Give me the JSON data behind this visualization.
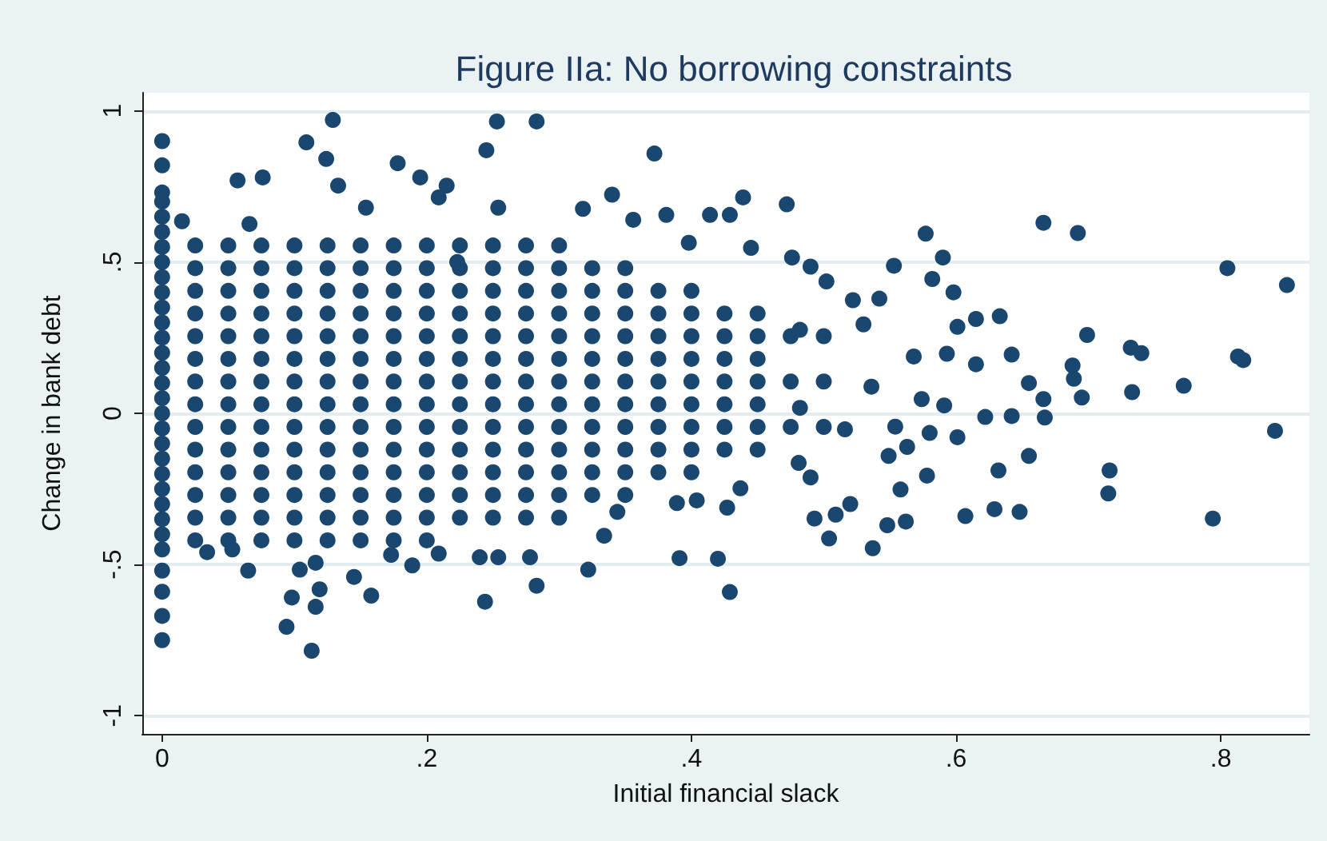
{
  "chart_data": {
    "type": "scatter",
    "title": "Figure IIa: No borrowing constraints",
    "xlabel": "Initial financial slack",
    "ylabel": "Change in bank debt",
    "xlim": [
      -0.015,
      0.867
    ],
    "ylim": [
      -1.06,
      1.06
    ],
    "xticks": [
      0,
      {
        "value": 0.2,
        "label": ".2"
      },
      {
        "value": 0.4,
        "label": ".4"
      },
      {
        "value": 0.6,
        "label": ".6"
      },
      {
        "value": 0.8,
        "label": ".8"
      }
    ],
    "yticks": [
      -1,
      {
        "value": -0.5,
        "label": "-.5"
      },
      0,
      {
        "value": 0.5,
        "label": ".5"
      },
      1
    ],
    "grid": "y",
    "marker": "circle",
    "series": [
      {
        "color": "#1a476f",
        "x": [
          0,
          0,
          0,
          0,
          0,
          0,
          0,
          0,
          0,
          0,
          0,
          0,
          0,
          0,
          0,
          0,
          0,
          0,
          0,
          0,
          0,
          0,
          0,
          0,
          0,
          0,
          0,
          0,
          0,
          0,
          0
        ],
        "values": [
          -0.45,
          -0.4,
          -0.35,
          -0.3,
          -0.25,
          -0.2,
          -0.15,
          -0.1,
          -0.05,
          0,
          0.05,
          0.1,
          0.15,
          0.2,
          0.25,
          0.3,
          0.35,
          0.4,
          0.45,
          0.5,
          0.55,
          0.6,
          0.65,
          0.7,
          0.9,
          0.82,
          0.73,
          -0.75,
          -0.67,
          -0.59,
          -0.52
        ]
      },
      {
        "color": "#1a476f",
        "x": [
          0.025,
          0.025,
          0.025,
          0.025,
          0.025,
          0.025,
          0.025,
          0.025,
          0.025,
          0.025,
          0.025,
          0.025,
          0.025,
          0.025,
          0.05,
          0.05,
          0.05,
          0.05,
          0.05,
          0.05,
          0.05,
          0.05,
          0.05,
          0.05,
          0.05,
          0.05,
          0.05,
          0.05,
          0.075,
          0.075,
          0.075,
          0.075,
          0.075,
          0.075,
          0.075,
          0.075,
          0.075,
          0.075,
          0.075,
          0.075,
          0.075,
          0.075,
          0.1,
          0.1,
          0.1,
          0.1,
          0.1,
          0.1,
          0.1,
          0.1,
          0.1,
          0.1,
          0.1,
          0.1,
          0.1,
          0.1
        ],
        "values": [
          -0.42,
          -0.345,
          -0.27,
          -0.195,
          -0.12,
          -0.045,
          0.03,
          0.105,
          0.18,
          0.255,
          0.33,
          0.405,
          0.48,
          0.555,
          -0.42,
          -0.345,
          -0.27,
          -0.195,
          -0.12,
          -0.045,
          0.03,
          0.105,
          0.18,
          0.255,
          0.33,
          0.405,
          0.48,
          0.555,
          -0.42,
          -0.345,
          -0.27,
          -0.195,
          -0.12,
          -0.045,
          0.03,
          0.105,
          0.18,
          0.255,
          0.33,
          0.405,
          0.48,
          0.555,
          -0.42,
          -0.345,
          -0.27,
          -0.195,
          -0.12,
          -0.045,
          0.03,
          0.105,
          0.18,
          0.255,
          0.33,
          0.405,
          0.48,
          0.555
        ]
      },
      {
        "color": "#1a476f",
        "x": [
          0.125,
          0.125,
          0.125,
          0.125,
          0.125,
          0.125,
          0.125,
          0.125,
          0.125,
          0.125,
          0.125,
          0.125,
          0.125,
          0.125,
          0.15,
          0.15,
          0.15,
          0.15,
          0.15,
          0.15,
          0.15,
          0.15,
          0.15,
          0.15,
          0.15,
          0.15,
          0.15,
          0.15,
          0.175,
          0.175,
          0.175,
          0.175,
          0.175,
          0.175,
          0.175,
          0.175,
          0.175,
          0.175,
          0.175,
          0.175,
          0.175,
          0.175,
          0.2,
          0.2,
          0.2,
          0.2,
          0.2,
          0.2,
          0.2,
          0.2,
          0.2,
          0.2,
          0.2,
          0.2,
          0.2,
          0.2
        ],
        "values": [
          -0.42,
          -0.345,
          -0.27,
          -0.195,
          -0.12,
          -0.045,
          0.03,
          0.105,
          0.18,
          0.255,
          0.33,
          0.405,
          0.48,
          0.555,
          -0.42,
          -0.345,
          -0.27,
          -0.195,
          -0.12,
          -0.045,
          0.03,
          0.105,
          0.18,
          0.255,
          0.33,
          0.405,
          0.48,
          0.555,
          -0.42,
          -0.345,
          -0.27,
          -0.195,
          -0.12,
          -0.045,
          0.03,
          0.105,
          0.18,
          0.255,
          0.33,
          0.405,
          0.48,
          0.555,
          -0.42,
          -0.345,
          -0.27,
          -0.195,
          -0.12,
          -0.045,
          0.03,
          0.105,
          0.18,
          0.255,
          0.33,
          0.405,
          0.48,
          0.555
        ]
      },
      {
        "color": "#1a476f",
        "x": [
          0.225,
          0.225,
          0.225,
          0.225,
          0.225,
          0.225,
          0.225,
          0.225,
          0.225,
          0.225,
          0.225,
          0.225,
          0.225,
          0.25,
          0.25,
          0.25,
          0.25,
          0.25,
          0.25,
          0.25,
          0.25,
          0.25,
          0.25,
          0.25,
          0.25,
          0.25,
          0.275,
          0.275,
          0.275,
          0.275,
          0.275,
          0.275,
          0.275,
          0.275,
          0.275,
          0.275,
          0.275,
          0.275,
          0.275,
          0.3,
          0.3,
          0.3,
          0.3,
          0.3,
          0.3,
          0.3,
          0.3,
          0.3,
          0.3,
          0.3,
          0.3,
          0.3
        ],
        "values": [
          -0.345,
          -0.27,
          -0.195,
          -0.12,
          -0.045,
          0.03,
          0.105,
          0.18,
          0.255,
          0.33,
          0.405,
          0.48,
          0.555,
          -0.345,
          -0.27,
          -0.195,
          -0.12,
          -0.045,
          0.03,
          0.105,
          0.18,
          0.255,
          0.33,
          0.405,
          0.48,
          0.555,
          -0.345,
          -0.27,
          -0.195,
          -0.12,
          -0.045,
          0.03,
          0.105,
          0.18,
          0.255,
          0.33,
          0.405,
          0.48,
          0.555,
          -0.345,
          -0.27,
          -0.195,
          -0.12,
          -0.045,
          0.03,
          0.105,
          0.18,
          0.255,
          0.33,
          0.405,
          0.48,
          0.555
        ]
      },
      {
        "color": "#1a476f",
        "x": [
          0.325,
          0.325,
          0.325,
          0.325,
          0.325,
          0.325,
          0.325,
          0.325,
          0.325,
          0.325,
          0.325,
          0.35,
          0.35,
          0.35,
          0.35,
          0.35,
          0.35,
          0.35,
          0.35,
          0.35,
          0.35,
          0.35,
          0.375,
          0.375,
          0.375,
          0.375,
          0.375,
          0.375,
          0.375,
          0.375,
          0.375,
          0.4,
          0.4,
          0.4,
          0.4,
          0.4,
          0.4,
          0.4,
          0.4,
          0.4,
          0.425,
          0.425,
          0.425,
          0.425,
          0.425,
          0.425,
          0.425,
          0.45,
          0.45,
          0.45,
          0.45,
          0.45,
          0.45,
          0.45,
          0.475,
          0.475,
          0.475,
          0.5,
          0.5,
          0.5
        ],
        "values": [
          -0.27,
          -0.195,
          -0.12,
          -0.045,
          0.03,
          0.105,
          0.18,
          0.255,
          0.33,
          0.405,
          0.48,
          -0.27,
          -0.195,
          -0.12,
          -0.045,
          0.03,
          0.105,
          0.18,
          0.255,
          0.33,
          0.405,
          0.48,
          -0.195,
          -0.12,
          -0.045,
          0.03,
          0.105,
          0.18,
          0.255,
          0.33,
          0.405,
          -0.195,
          -0.12,
          -0.045,
          0.03,
          0.105,
          0.18,
          0.255,
          0.33,
          0.405,
          -0.12,
          -0.045,
          0.03,
          0.105,
          0.18,
          0.255,
          0.33,
          -0.12,
          -0.045,
          0.03,
          0.105,
          0.18,
          0.255,
          0.33,
          -0.045,
          0.105,
          0.255,
          -0.045,
          0.105,
          0.255
        ]
      },
      {
        "color": "#1a476f",
        "x": [
          0.129,
          0.109,
          0.124,
          0.178,
          0.253,
          0.283,
          0.245,
          0.372,
          0.195,
          0.215,
          0.076,
          0.057,
          0.209,
          0.34,
          0.154,
          0.318,
          0.254,
          0.356,
          0.381,
          0.133,
          0.015,
          0.066,
          0.113,
          0.094,
          0.098,
          0.116,
          0.119,
          0.104,
          0.116,
          0.065,
          0.145,
          0.158,
          0.244,
          0.283,
          0.254,
          0.24,
          0.278,
          0.322,
          0.189,
          0.173,
          0.209,
          0.034,
          0.053,
          0.344,
          0.334,
          0.439,
          0.472,
          0.414,
          0.429,
          0.577,
          0.666,
          0.692,
          0.59,
          0.553,
          0.805,
          0.85,
          0.598,
          0.582,
          0.49,
          0.476,
          0.445,
          0.398,
          0.633,
          0.615,
          0.601,
          0.699,
          0.732,
          0.74,
          0.813,
          0.817,
          0.642,
          0.593,
          0.615,
          0.688,
          0.689,
          0.655,
          0.772,
          0.733,
          0.695,
          0.666,
          0.667,
          0.642,
          0.622,
          0.841,
          0.601,
          0.58,
          0.655,
          0.632,
          0.716,
          0.715,
          0.794,
          0.648,
          0.629,
          0.607,
          0.578,
          0.558,
          0.562,
          0.548,
          0.537,
          0.52,
          0.509,
          0.504,
          0.493,
          0.49,
          0.481,
          0.429,
          0.42,
          0.391,
          0.427,
          0.404,
          0.389,
          0.437,
          0.574,
          0.591,
          0.568,
          0.554,
          0.536,
          0.53,
          0.542,
          0.522,
          0.502,
          0.482,
          0.516,
          0.482,
          0.549,
          0.563,
          0.223
        ],
        "values": [
          0.97,
          0.896,
          0.841,
          0.827,
          0.965,
          0.965,
          0.87,
          0.859,
          0.78,
          0.753,
          0.78,
          0.77,
          0.714,
          0.723,
          0.68,
          0.676,
          0.68,
          0.64,
          0.656,
          0.753,
          0.635,
          0.626,
          -0.785,
          -0.706,
          -0.609,
          -0.64,
          -0.582,
          -0.517,
          -0.494,
          -0.52,
          -0.541,
          -0.603,
          -0.623,
          -0.57,
          -0.476,
          -0.476,
          -0.476,
          -0.517,
          -0.503,
          -0.468,
          -0.464,
          -0.459,
          -0.45,
          -0.326,
          -0.405,
          0.714,
          0.691,
          0.656,
          0.656,
          0.594,
          0.63,
          0.596,
          0.515,
          0.488,
          0.48,
          0.424,
          0.4,
          0.444,
          0.485,
          0.515,
          0.547,
          0.564,
          0.321,
          0.312,
          0.286,
          0.259,
          0.217,
          0.199,
          0.188,
          0.176,
          0.194,
          0.197,
          0.162,
          0.158,
          0.114,
          0.1,
          0.091,
          0.07,
          0.052,
          0.047,
          -0.014,
          -0.009,
          -0.012,
          -0.058,
          -0.079,
          -0.065,
          -0.141,
          -0.189,
          -0.189,
          -0.265,
          -0.348,
          -0.326,
          -0.317,
          -0.34,
          -0.206,
          -0.252,
          -0.358,
          -0.37,
          -0.446,
          -0.3,
          -0.335,
          -0.414,
          -0.348,
          -0.212,
          -0.164,
          -0.591,
          -0.481,
          -0.479,
          -0.312,
          -0.288,
          -0.297,
          -0.248,
          0.047,
          0.026,
          0.188,
          -0.044,
          0.088,
          0.294,
          0.379,
          0.374,
          0.436,
          0.276,
          -0.053,
          0.018,
          -0.141,
          -0.111,
          0.5
        ]
      }
    ]
  }
}
